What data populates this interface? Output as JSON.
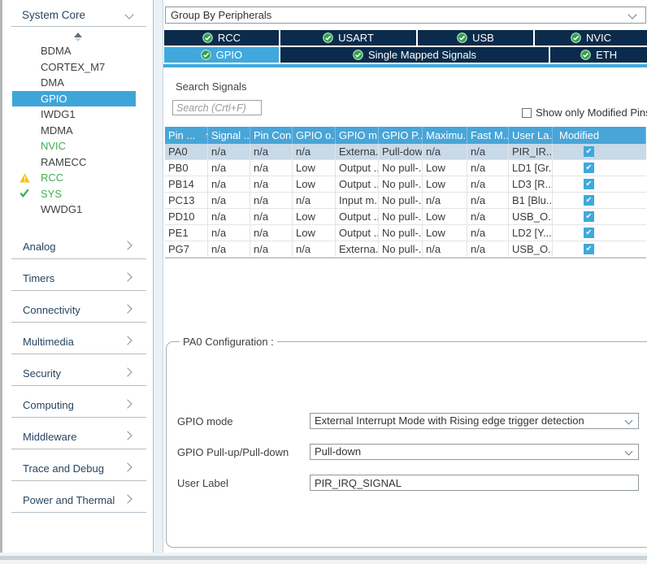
{
  "colors": {
    "accent_blue": "#41a8dd",
    "navy": "#0a2b4b",
    "table_header_blue": "#48a5d8",
    "selected_row": "#c8d9e8",
    "checkbox_blue": "#3fa9dc",
    "green": "#2fa24f",
    "sidebar_green": "#3fae53",
    "warning_yellow": "#f5c60a"
  },
  "sidebar": {
    "header": {
      "label": "System Core",
      "state": "expanded"
    },
    "items": [
      {
        "label": "BDMA",
        "state": "normal"
      },
      {
        "label": "CORTEX_M7",
        "state": "normal"
      },
      {
        "label": "DMA",
        "state": "normal"
      },
      {
        "label": "GPIO",
        "state": "selected"
      },
      {
        "label": "IWDG1",
        "state": "normal"
      },
      {
        "label": "MDMA",
        "state": "normal"
      },
      {
        "label": "NVIC",
        "state": "configured"
      },
      {
        "label": "RAMECC",
        "state": "normal"
      },
      {
        "label": "RCC",
        "state": "warning"
      },
      {
        "label": "SYS",
        "state": "ok"
      },
      {
        "label": "WWDG1",
        "state": "normal"
      }
    ],
    "sections": [
      "Analog",
      "Timers",
      "Connectivity",
      "Multimedia",
      "Security",
      "Computing",
      "Middleware",
      "Trace and Debug",
      "Power and Thermal"
    ]
  },
  "toolbar": {
    "group_by_value": "Group By Peripherals"
  },
  "tabs": {
    "row1": [
      {
        "label": "RCC",
        "status": "ok",
        "selected": false
      },
      {
        "label": "USART",
        "status": "ok",
        "selected": false
      },
      {
        "label": "USB",
        "status": "ok",
        "selected": false
      },
      {
        "label": "NVIC",
        "status": "ok",
        "selected": false
      }
    ],
    "row2": [
      {
        "label": "GPIO",
        "status": "ok",
        "selected": true
      },
      {
        "label": "Single Mapped Signals",
        "status": "ok",
        "selected": false
      },
      {
        "label": "ETH",
        "status": "ok",
        "selected": false
      }
    ]
  },
  "signals": {
    "search_label": "Search Signals",
    "search_placeholder": "Search (Crtl+F)",
    "show_only_modified_label": "Show only Modified Pins",
    "show_only_modified_checked": false,
    "table": {
      "columns": [
        "Pin ...",
        "Signal ...",
        "Pin Con...",
        "GPIO o...",
        "GPIO m...",
        "GPIO P...",
        "Maximu...",
        "Fast M...",
        "User La...",
        "Modified"
      ],
      "rows": [
        {
          "selected": true,
          "modified": true,
          "cells": [
            "PA0",
            "n/a",
            "n/a",
            "n/a",
            "Externa...",
            "Pull-down",
            "n/a",
            "n/a",
            "PIR_IR..."
          ]
        },
        {
          "selected": false,
          "modified": true,
          "cells": [
            "PB0",
            "n/a",
            "n/a",
            "Low",
            "Output ...",
            "No pull-...",
            "Low",
            "n/a",
            "LD1 [Gr..."
          ]
        },
        {
          "selected": false,
          "modified": true,
          "cells": [
            "PB14",
            "n/a",
            "n/a",
            "Low",
            "Output ...",
            "No pull-...",
            "Low",
            "n/a",
            "LD3 [R..."
          ]
        },
        {
          "selected": false,
          "modified": true,
          "cells": [
            "PC13",
            "n/a",
            "n/a",
            "n/a",
            "Input m...",
            "No pull-...",
            "n/a",
            "n/a",
            "B1 [Blu..."
          ]
        },
        {
          "selected": false,
          "modified": true,
          "cells": [
            "PD10",
            "n/a",
            "n/a",
            "Low",
            "Output ...",
            "No pull-...",
            "Low",
            "n/a",
            "USB_O..."
          ]
        },
        {
          "selected": false,
          "modified": true,
          "cells": [
            "PE1",
            "n/a",
            "n/a",
            "Low",
            "Output ...",
            "No pull-...",
            "Low",
            "n/a",
            "LD2 [Y..."
          ]
        },
        {
          "selected": false,
          "modified": true,
          "cells": [
            "PG7",
            "n/a",
            "n/a",
            "n/a",
            "Externa...",
            "No pull-...",
            "n/a",
            "n/a",
            "USB_O..."
          ]
        }
      ]
    }
  },
  "config": {
    "legend": "PA0 Configuration :",
    "fields": [
      {
        "name": "gpio-mode-select",
        "label": "GPIO mode",
        "value": "External Interrupt Mode with Rising edge trigger detection",
        "type": "select"
      },
      {
        "name": "gpio-pullupdown-select",
        "label": "GPIO Pull-up/Pull-down",
        "value": "Pull-down",
        "type": "select"
      },
      {
        "name": "user-label-input",
        "label": "User Label",
        "value": "PIR_IRQ_SIGNAL",
        "type": "text"
      }
    ]
  }
}
